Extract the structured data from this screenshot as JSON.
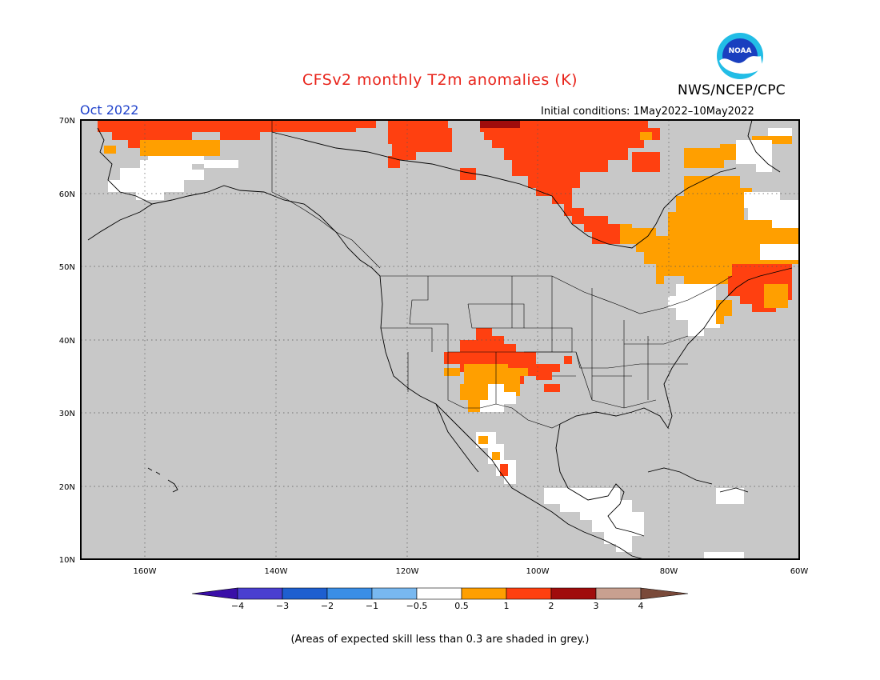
{
  "header": {
    "title": "CFSv2 monthly T2m anomalies (K)",
    "agency": "NWS/NCEP/CPC",
    "logo_text": "NOAA",
    "forecast_month": "Oct 2022",
    "initial_conditions": "Initial conditions: 1May2022–10May2022"
  },
  "map": {
    "lat_labels": [
      "70N",
      "60N",
      "50N",
      "40N",
      "30N",
      "20N",
      "10N"
    ],
    "lon_labels": [
      "160W",
      "140W",
      "120W",
      "100W",
      "80W",
      "60W"
    ],
    "background_color": "#c8c8c8",
    "gridlines": "dotted"
  },
  "legend": {
    "tick_labels": [
      "−4",
      "−3",
      "−2",
      "−1",
      "−0.5",
      "0.5",
      "1",
      "2",
      "3",
      "4"
    ],
    "colors": [
      "#3a0fa8",
      "#4a3fd0",
      "#1e5fd0",
      "#3a8ee6",
      "#78b8f0",
      "#ffffff",
      "#ff9f00",
      "#ff4010",
      "#a00c0c",
      "#c8a090",
      "#7a4a3a"
    ]
  },
  "footnote": "(Areas of expected skill less than 0.3 are shaded in grey.)"
}
